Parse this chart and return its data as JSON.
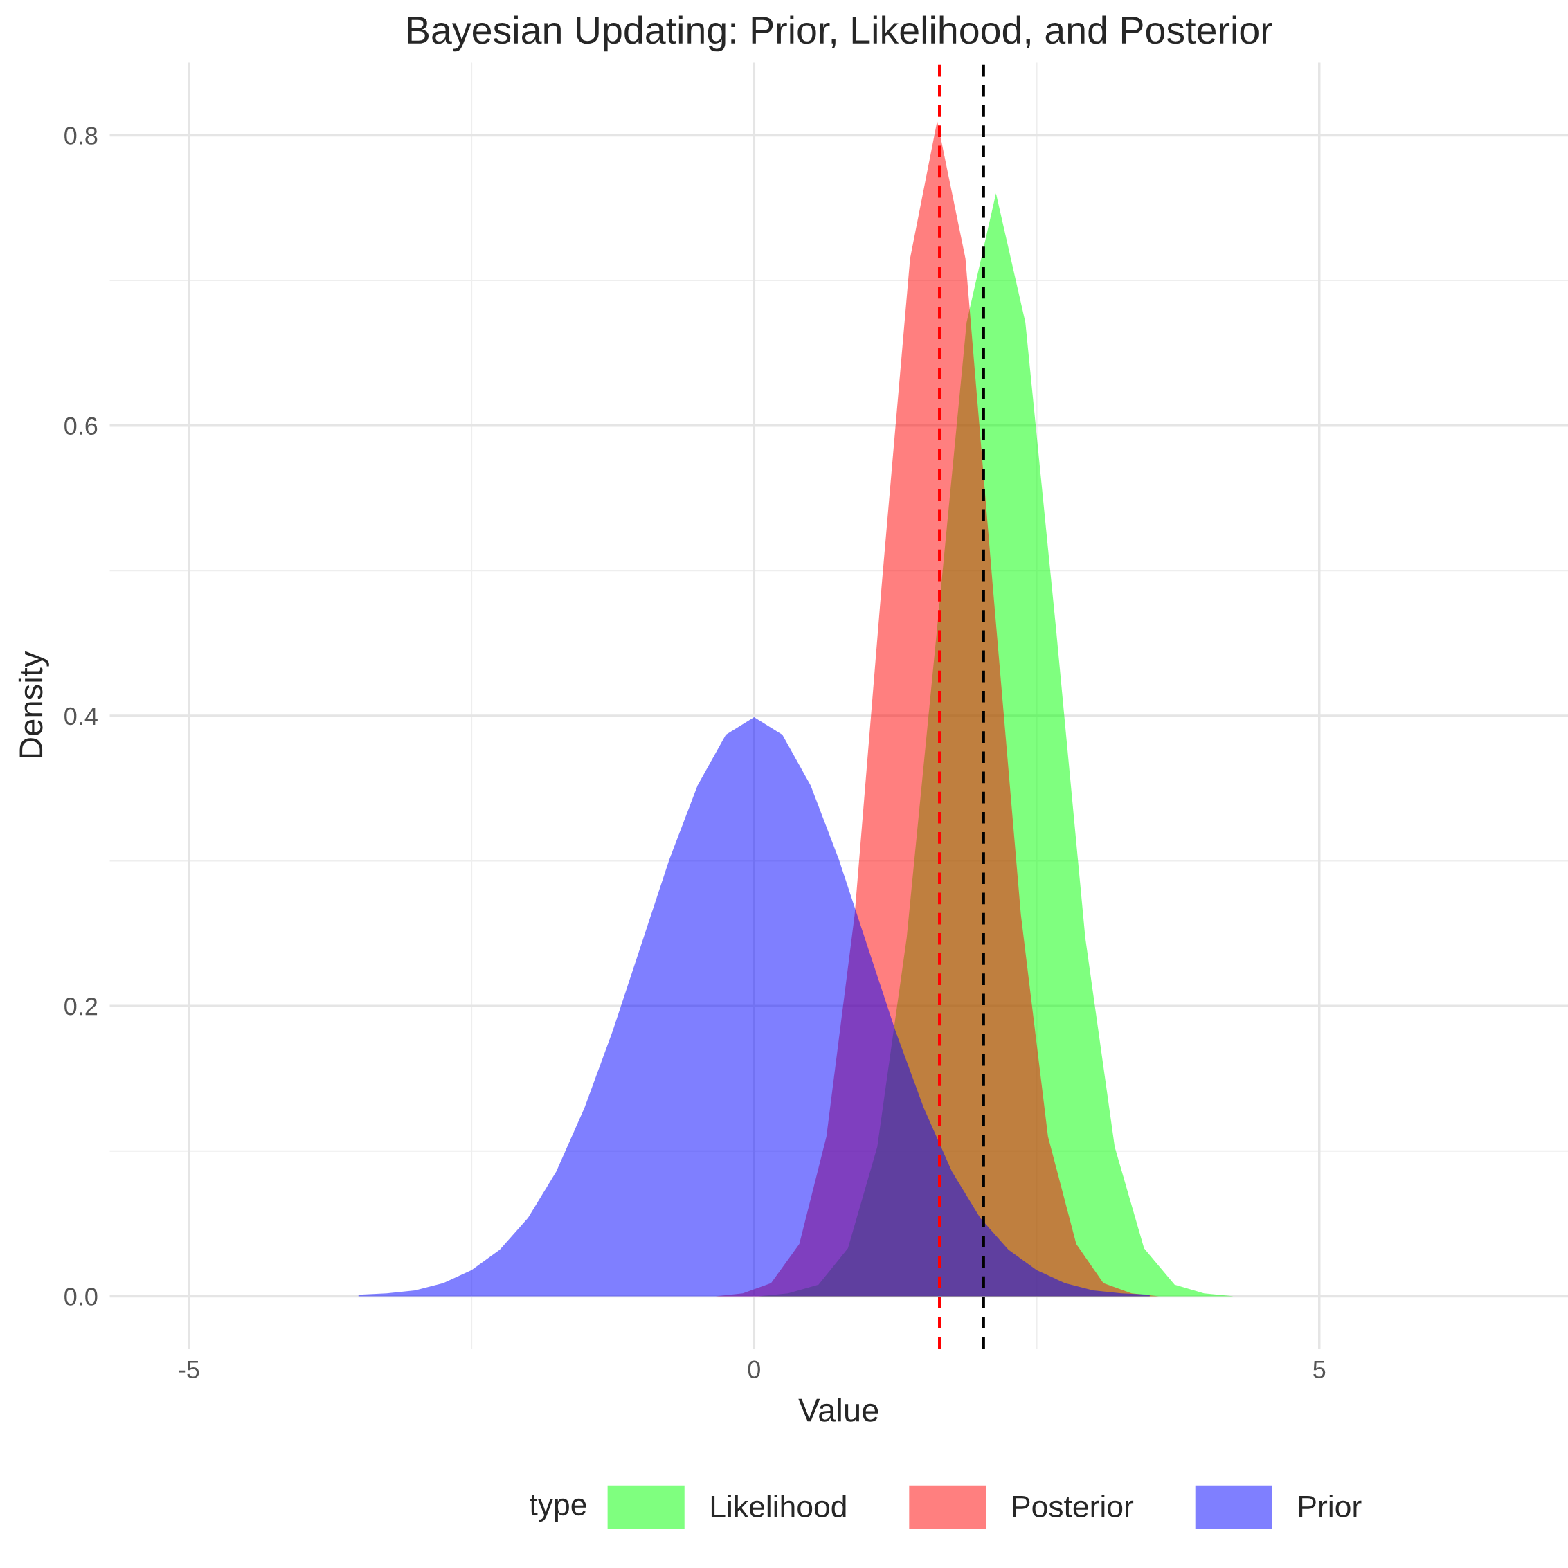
{
  "chart_data": {
    "type": "area",
    "title": "Bayesian Updating: Prior, Likelihood, and Posterior",
    "xlabel": "Value",
    "ylabel": "Density",
    "legend_title": "type",
    "legend": "bottom",
    "grid": true,
    "xlim": [
      -5.7,
      7.2
    ],
    "ylim": [
      -0.036,
      0.85
    ],
    "xticks": [
      -5,
      0,
      5
    ],
    "yticks": [
      {
        "value": 0,
        "label": "0.0"
      },
      0.2,
      0.4,
      0.6,
      0.8
    ],
    "series": [
      {
        "name": "Likelihood",
        "color": "#00ff00",
        "x": [
          0.04,
          0.3,
          0.57,
          0.83,
          1.09,
          1.35,
          1.62,
          1.88,
          2.14,
          2.4,
          2.67,
          2.93,
          3.19,
          3.45,
          3.72,
          3.98,
          4.24
        ],
        "values": [
          0.0,
          0.002,
          0.008,
          0.033,
          0.103,
          0.247,
          0.461,
          0.671,
          0.76,
          0.671,
          0.461,
          0.247,
          0.103,
          0.033,
          0.008,
          0.002,
          0.0
        ]
      },
      {
        "name": "Posterior",
        "color": "#ff0000",
        "x": [
          -0.34,
          -0.1,
          0.15,
          0.4,
          0.64,
          0.89,
          1.13,
          1.38,
          1.62,
          1.87,
          2.11,
          2.36,
          2.6,
          2.85,
          3.09,
          3.34,
          3.58
        ],
        "values": [
          0.0,
          0.002,
          0.009,
          0.036,
          0.11,
          0.263,
          0.491,
          0.715,
          0.81,
          0.715,
          0.491,
          0.263,
          0.11,
          0.036,
          0.009,
          0.002,
          0.0
        ]
      },
      {
        "name": "Prior",
        "color": "#0000ff",
        "x": [
          -3.5,
          -3.25,
          -3,
          -2.75,
          -2.5,
          -2.25,
          -2,
          -1.75,
          -1.5,
          -1.25,
          -1,
          -0.75,
          -0.5,
          -0.25,
          0,
          0.25,
          0.5,
          0.75,
          1,
          1.25,
          1.5,
          1.75,
          2,
          2.25,
          2.5,
          2.75,
          3,
          3.25,
          3.5
        ],
        "values": [
          0.001,
          0.002,
          0.004,
          0.009,
          0.018,
          0.032,
          0.054,
          0.086,
          0.13,
          0.183,
          0.242,
          0.301,
          0.352,
          0.387,
          0.399,
          0.387,
          0.352,
          0.301,
          0.242,
          0.183,
          0.13,
          0.086,
          0.054,
          0.032,
          0.018,
          0.009,
          0.004,
          0.002,
          0.001
        ]
      }
    ],
    "ref_lines": [
      {
        "axis": "x",
        "value": 1.64,
        "color": "#ff0000",
        "line_style": "dashed"
      },
      {
        "axis": "x",
        "value": 2.03,
        "color": "#000000",
        "line_style": "dashed"
      }
    ]
  }
}
